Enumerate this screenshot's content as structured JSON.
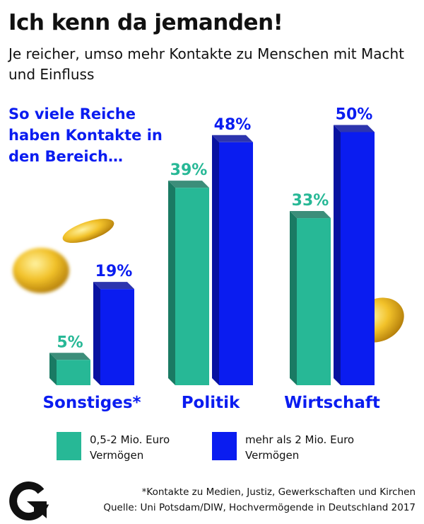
{
  "header": {
    "title": "Ich kenn da jemanden!",
    "subtitle": "Je reicher, umso mehr Kontakte zu Menschen mit Macht und Einfluss",
    "intro": "So viele Reiche haben Kontakte in den Bereich…"
  },
  "chart_data": {
    "type": "bar",
    "categories": [
      "Sonstiges*",
      "Politik",
      "Wirtschaft"
    ],
    "series": [
      {
        "name": "0,5-2 Mio. Euro Vermögen",
        "values": [
          5,
          39,
          33
        ],
        "labels": [
          "5%",
          "39%",
          "33%"
        ],
        "color": "#27b896",
        "side_color": "#1a7a63"
      },
      {
        "name": "mehr als 2 Mio. Euro Vermögen",
        "values": [
          19,
          48,
          50
        ],
        "labels": [
          "19%",
          "48%",
          "50%"
        ],
        "color": "#0a1cf0",
        "side_color": "#0812a0"
      }
    ],
    "ylim": [
      0,
      50
    ],
    "grid": false,
    "legend": "bottom",
    "category_color": "#0a1cf0"
  },
  "footer": {
    "note": "*Kontakte zu Medien, Justiz, Gewerkschaften und Kirchen",
    "source": "Quelle: Uni Potsdam/DIW, Hochvermögende in Deutschland 2017",
    "logo_icon": "g-arrow-logo"
  }
}
